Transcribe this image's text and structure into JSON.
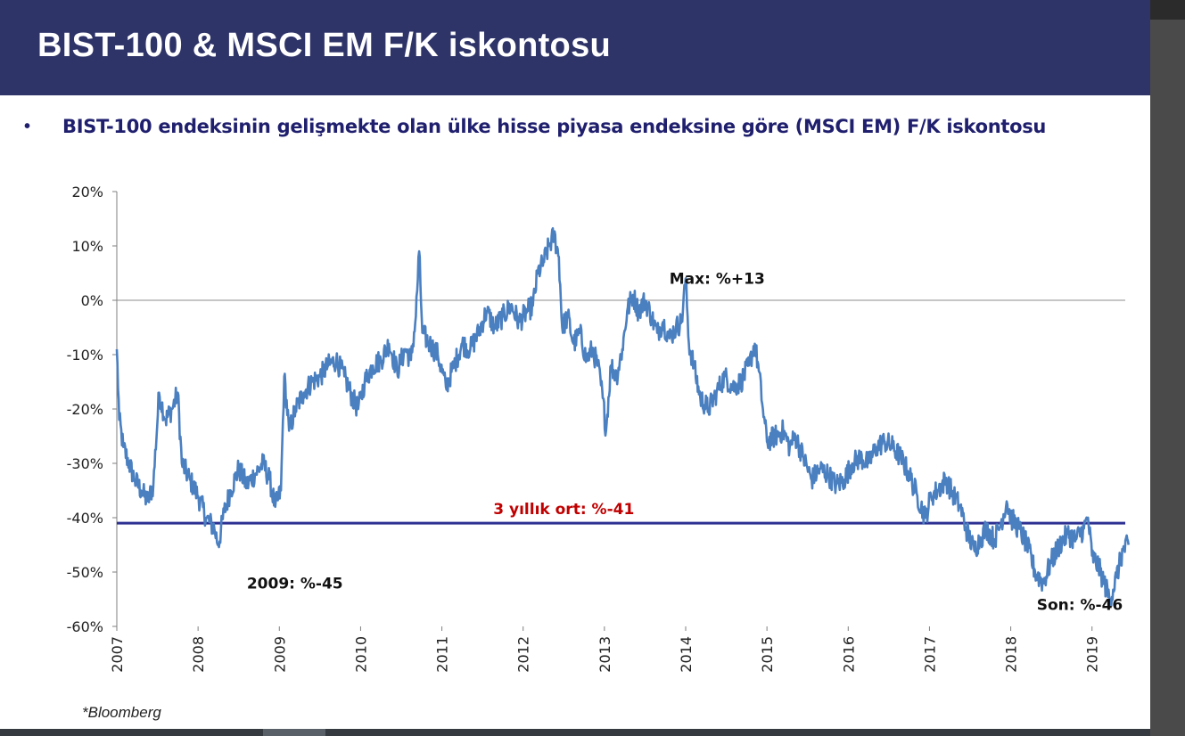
{
  "header": {
    "title": "BIST-100 & MSCI EM F/K iskontosu"
  },
  "bullet": "•",
  "subtitle": "BIST-100 endeksinin gelişmekte olan ülke hisse piyasa endeksine göre (MSCI EM) F/K iskontosu",
  "source": "*Bloomberg",
  "colors": {
    "header_bg": "#2e3368",
    "line": "#4a7fc0",
    "avg_line": "#2e3192",
    "avg_label": "#c00000"
  },
  "chart_data": {
    "type": "line",
    "title": "",
    "xlabel": "",
    "ylabel": "",
    "ylim": [
      -60,
      20
    ],
    "xlim": [
      2007,
      2019.45
    ],
    "yticks": [
      20,
      10,
      0,
      -10,
      -20,
      -30,
      -40,
      -50,
      -60
    ],
    "ytick_labels": [
      "20%",
      "10%",
      "0%",
      "-10%",
      "-20%",
      "-30%",
      "-40%",
      "-50%",
      "-60%"
    ],
    "xtick_labels": [
      "2007",
      "2008",
      "2009",
      "2010",
      "2011",
      "2012",
      "2013",
      "2014",
      "2015",
      "2016",
      "2017",
      "2018",
      "2019"
    ],
    "series": [
      {
        "values": [
          [
            2007.0,
            -9
          ],
          [
            2007.03,
            -22
          ],
          [
            2007.08,
            -27
          ],
          [
            2007.15,
            -30
          ],
          [
            2007.22,
            -33
          ],
          [
            2007.3,
            -35
          ],
          [
            2007.38,
            -37
          ],
          [
            2007.45,
            -34
          ],
          [
            2007.52,
            -17
          ],
          [
            2007.6,
            -22
          ],
          [
            2007.68,
            -20
          ],
          [
            2007.75,
            -17
          ],
          [
            2007.8,
            -30
          ],
          [
            2007.9,
            -33
          ],
          [
            2008.0,
            -36
          ],
          [
            2008.1,
            -40
          ],
          [
            2008.2,
            -42
          ],
          [
            2008.25,
            -45
          ],
          [
            2008.32,
            -39
          ],
          [
            2008.4,
            -35
          ],
          [
            2008.5,
            -31
          ],
          [
            2008.6,
            -34
          ],
          [
            2008.7,
            -32
          ],
          [
            2008.8,
            -30
          ],
          [
            2008.88,
            -33
          ],
          [
            2008.95,
            -38
          ],
          [
            2009.02,
            -35
          ],
          [
            2009.06,
            -14
          ],
          [
            2009.12,
            -24
          ],
          [
            2009.2,
            -20
          ],
          [
            2009.3,
            -17
          ],
          [
            2009.4,
            -15
          ],
          [
            2009.5,
            -14
          ],
          [
            2009.6,
            -12
          ],
          [
            2009.7,
            -11
          ],
          [
            2009.8,
            -14
          ],
          [
            2009.9,
            -18
          ],
          [
            2009.97,
            -20
          ],
          [
            2010.05,
            -15
          ],
          [
            2010.15,
            -12
          ],
          [
            2010.25,
            -11
          ],
          [
            2010.35,
            -8
          ],
          [
            2010.45,
            -13
          ],
          [
            2010.55,
            -9
          ],
          [
            2010.62,
            -11
          ],
          [
            2010.68,
            -3
          ],
          [
            2010.72,
            9
          ],
          [
            2010.76,
            -6
          ],
          [
            2010.85,
            -8
          ],
          [
            2010.95,
            -10
          ],
          [
            2011.05,
            -16
          ],
          [
            2011.15,
            -12
          ],
          [
            2011.25,
            -8
          ],
          [
            2011.35,
            -9
          ],
          [
            2011.45,
            -6
          ],
          [
            2011.55,
            -2
          ],
          [
            2011.65,
            -5
          ],
          [
            2011.75,
            -3
          ],
          [
            2011.85,
            -1
          ],
          [
            2011.95,
            -4
          ],
          [
            2012.05,
            -2
          ],
          [
            2012.12,
            -1
          ],
          [
            2012.18,
            5
          ],
          [
            2012.25,
            7
          ],
          [
            2012.32,
            10
          ],
          [
            2012.38,
            12
          ],
          [
            2012.44,
            8
          ],
          [
            2012.48,
            -5
          ],
          [
            2012.55,
            -3
          ],
          [
            2012.62,
            -8
          ],
          [
            2012.7,
            -6
          ],
          [
            2012.78,
            -11
          ],
          [
            2012.85,
            -9
          ],
          [
            2012.92,
            -12
          ],
          [
            2012.98,
            -18
          ],
          [
            2013.02,
            -24
          ],
          [
            2013.08,
            -12
          ],
          [
            2013.15,
            -14
          ],
          [
            2013.22,
            -9
          ],
          [
            2013.28,
            -2
          ],
          [
            2013.35,
            1
          ],
          [
            2013.42,
            -2
          ],
          [
            2013.5,
            0
          ],
          [
            2013.58,
            -3
          ],
          [
            2013.65,
            -6
          ],
          [
            2013.72,
            -4
          ],
          [
            2013.8,
            -7
          ],
          [
            2013.88,
            -5
          ],
          [
            2013.95,
            -4
          ],
          [
            2014.0,
            4
          ],
          [
            2014.04,
            -8
          ],
          [
            2014.1,
            -12
          ],
          [
            2014.18,
            -18
          ],
          [
            2014.28,
            -20
          ],
          [
            2014.38,
            -17
          ],
          [
            2014.48,
            -14
          ],
          [
            2014.58,
            -16
          ],
          [
            2014.68,
            -15
          ],
          [
            2014.78,
            -12
          ],
          [
            2014.85,
            -8
          ],
          [
            2014.9,
            -13
          ],
          [
            2014.95,
            -20
          ],
          [
            2015.0,
            -26
          ],
          [
            2015.1,
            -25
          ],
          [
            2015.2,
            -24
          ],
          [
            2015.28,
            -27
          ],
          [
            2015.35,
            -25
          ],
          [
            2015.45,
            -29
          ],
          [
            2015.55,
            -33
          ],
          [
            2015.65,
            -31
          ],
          [
            2015.75,
            -32
          ],
          [
            2015.85,
            -34
          ],
          [
            2015.95,
            -33
          ],
          [
            2016.05,
            -30
          ],
          [
            2016.15,
            -29
          ],
          [
            2016.25,
            -30
          ],
          [
            2016.35,
            -27
          ],
          [
            2016.45,
            -26
          ],
          [
            2016.55,
            -27
          ],
          [
            2016.65,
            -29
          ],
          [
            2016.75,
            -32
          ],
          [
            2016.85,
            -36
          ],
          [
            2016.95,
            -40
          ],
          [
            2017.02,
            -36
          ],
          [
            2017.1,
            -35
          ],
          [
            2017.2,
            -33
          ],
          [
            2017.3,
            -36
          ],
          [
            2017.38,
            -38
          ],
          [
            2017.45,
            -42
          ],
          [
            2017.55,
            -46
          ],
          [
            2017.62,
            -44
          ],
          [
            2017.7,
            -42
          ],
          [
            2017.8,
            -44
          ],
          [
            2017.88,
            -41
          ],
          [
            2017.95,
            -37
          ],
          [
            2018.0,
            -40
          ],
          [
            2018.1,
            -42
          ],
          [
            2018.2,
            -45
          ],
          [
            2018.3,
            -50
          ],
          [
            2018.4,
            -52
          ],
          [
            2018.5,
            -48
          ],
          [
            2018.6,
            -45
          ],
          [
            2018.7,
            -43
          ],
          [
            2018.8,
            -44
          ],
          [
            2018.9,
            -42
          ],
          [
            2018.95,
            -40
          ],
          [
            2019.0,
            -47
          ],
          [
            2019.08,
            -49
          ],
          [
            2019.15,
            -52
          ],
          [
            2019.22,
            -55
          ],
          [
            2019.3,
            -51
          ],
          [
            2019.38,
            -46
          ],
          [
            2019.45,
            -45
          ]
        ]
      }
    ],
    "hlines": [
      {
        "y": 0,
        "role": "zero"
      },
      {
        "y": -41,
        "role": "average",
        "label": "3 yıllık ort: %-41"
      }
    ],
    "annotations": [
      {
        "text": "Max: %+13",
        "x": 2013.8,
        "y": 3
      },
      {
        "text": "2009: %-45",
        "x": 2008.6,
        "y": -53
      },
      {
        "text": "Son: %-46",
        "x": 2018.32,
        "y": -57
      }
    ],
    "grid": false,
    "legend": "none"
  }
}
